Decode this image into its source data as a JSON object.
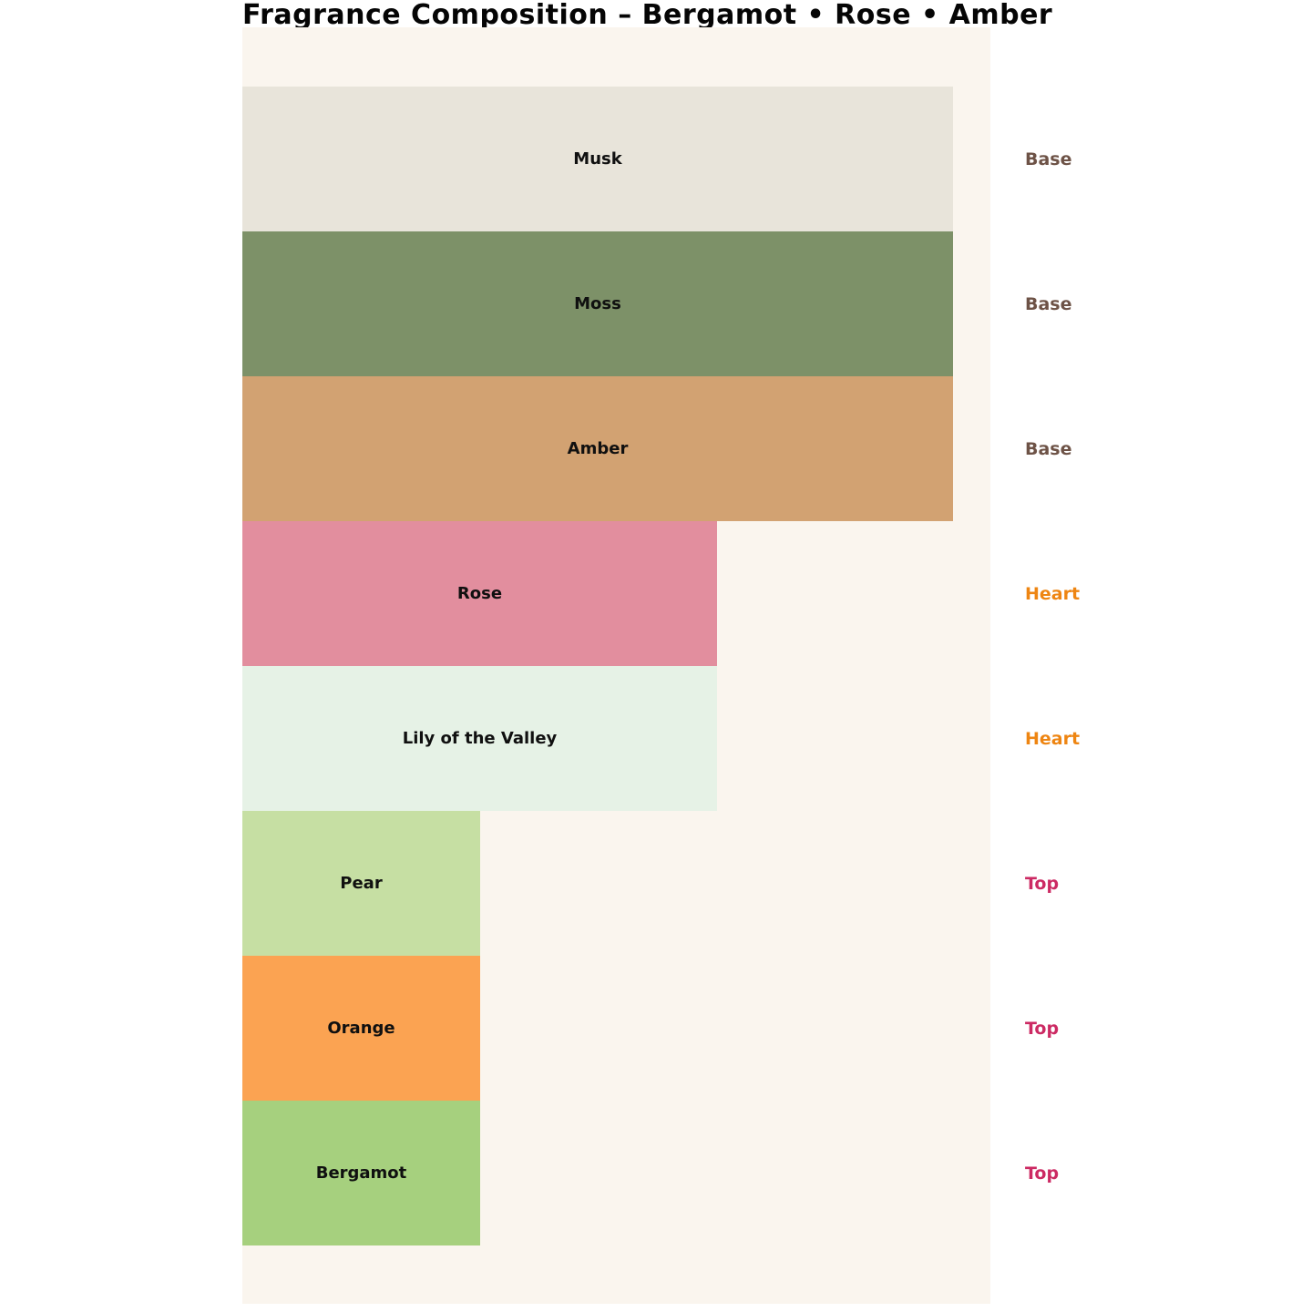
{
  "title": "Fragrance Composition – Bergamot • Rose • Amber",
  "chart_data": {
    "type": "bar",
    "orientation": "horizontal",
    "title": "Fragrance Composition – Bergamot • Rose • Amber",
    "xlabel": "",
    "ylabel": "",
    "axes_visible": false,
    "grid": false,
    "background_color": "#faf5ee",
    "page_background": "#ffffff",
    "note_type_colors": {
      "Base": "#6d5246",
      "Heart": "#ee8512",
      "Top": "#cc2a63"
    },
    "bars": [
      {
        "label": "Musk",
        "note_type": "Base",
        "width_pct": 100,
        "color": "#e8e4da"
      },
      {
        "label": "Moss",
        "note_type": "Base",
        "width_pct": 100,
        "color": "#7d9168"
      },
      {
        "label": "Amber",
        "note_type": "Base",
        "width_pct": 100,
        "color": "#d2a272"
      },
      {
        "label": "Rose",
        "note_type": "Heart",
        "width_pct": 66.8,
        "color": "#e28e9e"
      },
      {
        "label": "Lily of the Valley",
        "note_type": "Heart",
        "width_pct": 66.8,
        "color": "#e6f2e6"
      },
      {
        "label": "Pear",
        "note_type": "Top",
        "width_pct": 33.5,
        "color": "#c6dfa3"
      },
      {
        "label": "Orange",
        "note_type": "Top",
        "width_pct": 33.5,
        "color": "#fba352"
      },
      {
        "label": "Bergamot",
        "note_type": "Top",
        "width_pct": 33.5,
        "color": "#a6d07e"
      }
    ]
  }
}
